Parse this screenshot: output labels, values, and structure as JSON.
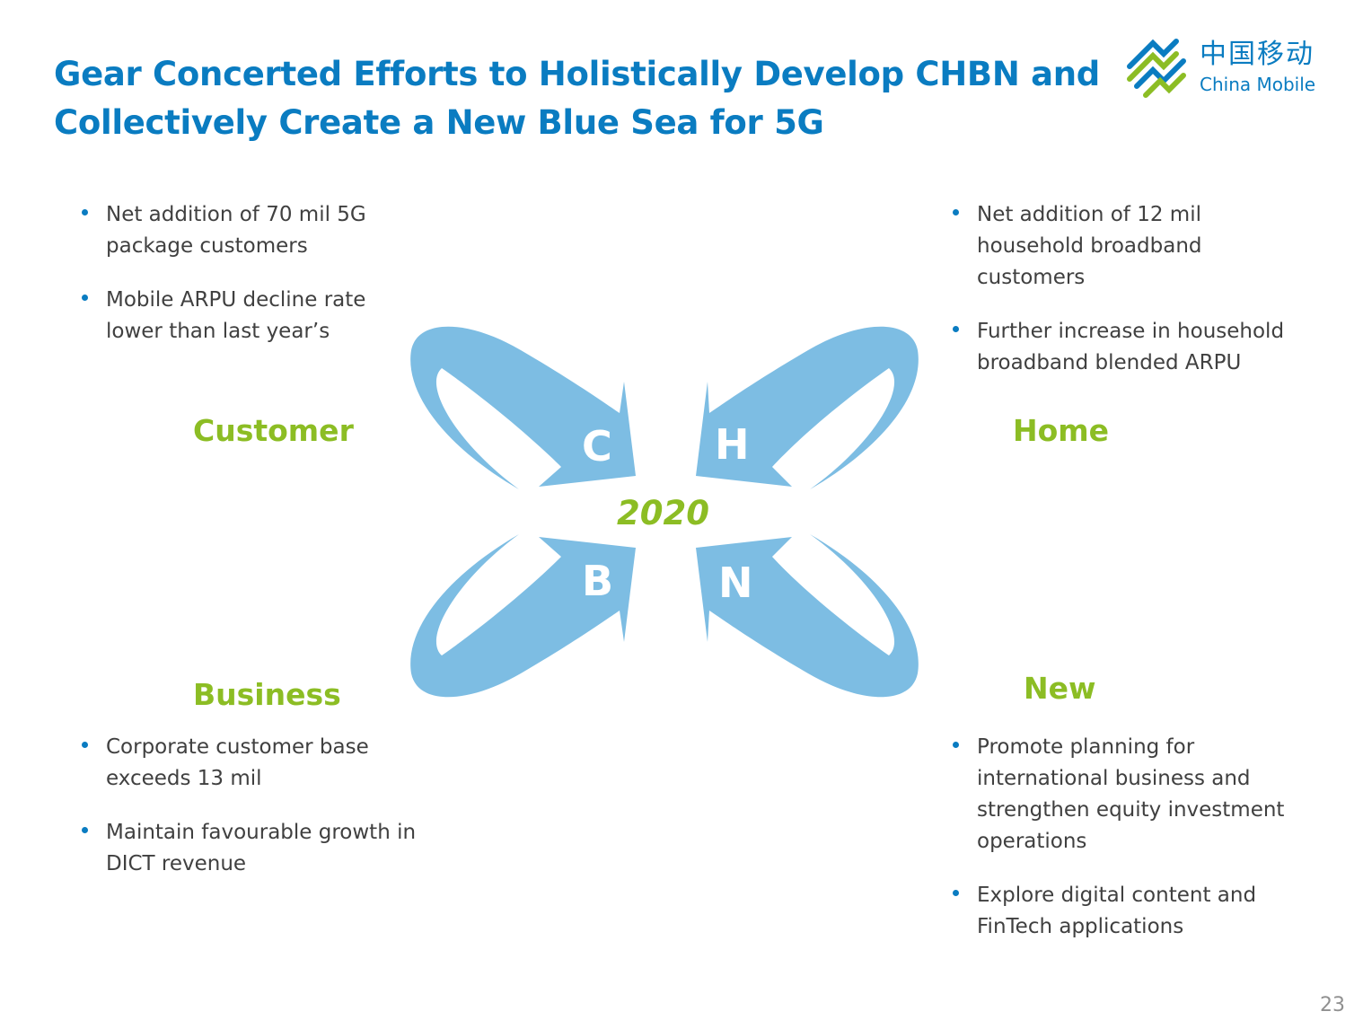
{
  "title_lines": [
    "Gear Concerted Efforts to Holistically Develop CHBN and",
    "Collectively Create a New Blue Sea for 5G"
  ],
  "logo": {
    "chinese": "中国移动",
    "english": "China Mobile",
    "icon": "china-mobile-logo-icon"
  },
  "center": {
    "year": "2020",
    "letters": {
      "c": "C",
      "h": "H",
      "b": "B",
      "n": "N"
    }
  },
  "quadrants": {
    "customer": {
      "label": "Customer",
      "bullets": [
        "Net addition of 70 mil 5G package customers",
        "Mobile ARPU decline rate lower than last year’s"
      ]
    },
    "home": {
      "label": "Home",
      "bullets": [
        "Net addition of 12 mil household broadband customers",
        "Further increase in household broadband blended ARPU"
      ]
    },
    "business": {
      "label": "Business",
      "bullets": [
        "Corporate customer base exceeds 13 mil",
        "Maintain favourable growth in DICT revenue"
      ]
    },
    "new": {
      "label": "New",
      "bullets": [
        "Promote planning for international business and strengthen equity investment operations",
        "Explore digital content and FinTech applications"
      ]
    }
  },
  "page_number": "23",
  "colors": {
    "title": "#0a7cc1",
    "label_green": "#8cbd24",
    "arrow_blue": "#7dbde3",
    "text": "#404040"
  }
}
